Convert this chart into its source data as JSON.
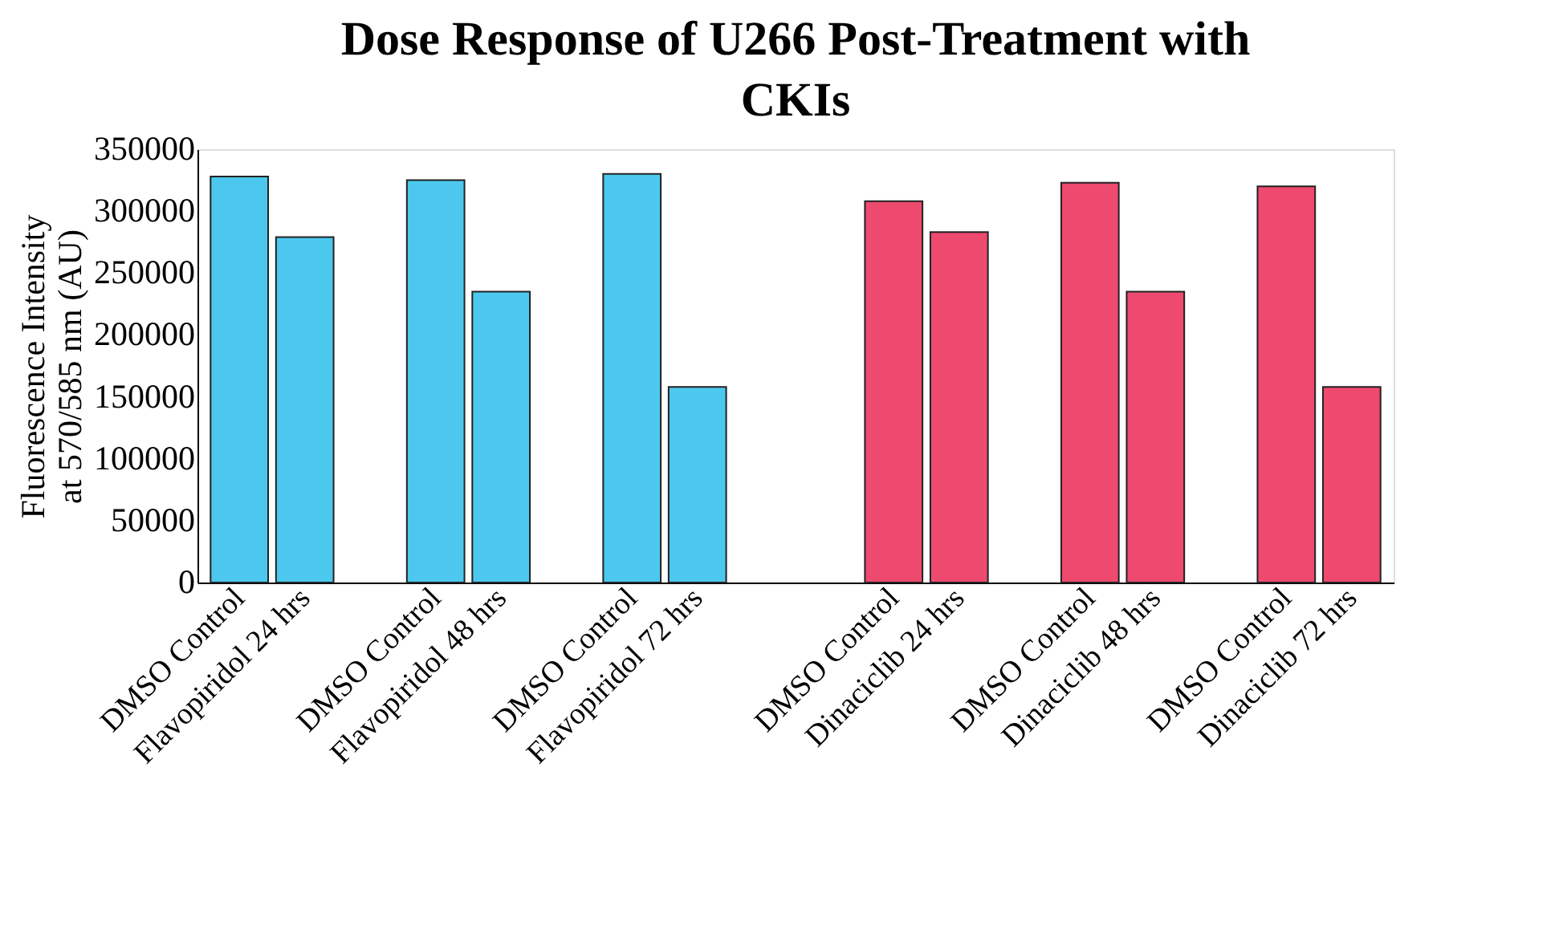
{
  "chart_data": {
    "type": "bar",
    "title": "Dose Response of U266 Post-Treatment with CKIs",
    "ylabel": "Fluorescence Intensity at 570/585 nm (AU)",
    "categories": [
      "DMSO Control",
      "Flavopiridol 24 hrs",
      null,
      "DMSO Control",
      "Flavopiridol 48 hrs",
      null,
      "DMSO Control",
      "Flavopiridol 72 hrs",
      null,
      null,
      "DMSO Control",
      "Dinaciclib 24 hrs",
      null,
      "DMSO Control",
      "Dinaciclib 48 hrs",
      null,
      "DMSO Control",
      "Dinaciclib 72 hrs"
    ],
    "values": [
      328000,
      279000,
      null,
      325000,
      235000,
      null,
      330000,
      158000,
      null,
      null,
      308000,
      283000,
      null,
      323000,
      235000,
      null,
      320000,
      158000
    ],
    "colors": [
      "#4cc8ee",
      "#4cc8ee",
      null,
      "#4cc8ee",
      "#4cc8ee",
      null,
      "#4cc8ee",
      "#4cc8ee",
      null,
      null,
      "#ee4a70",
      "#ee4a70",
      null,
      "#ee4a70",
      "#ee4a70",
      null,
      "#ee4a70",
      "#ee4a70"
    ],
    "ylim": [
      0,
      350000
    ],
    "yticks": [
      0,
      50000,
      100000,
      150000,
      200000,
      250000,
      300000,
      350000
    ],
    "grid": false
  }
}
